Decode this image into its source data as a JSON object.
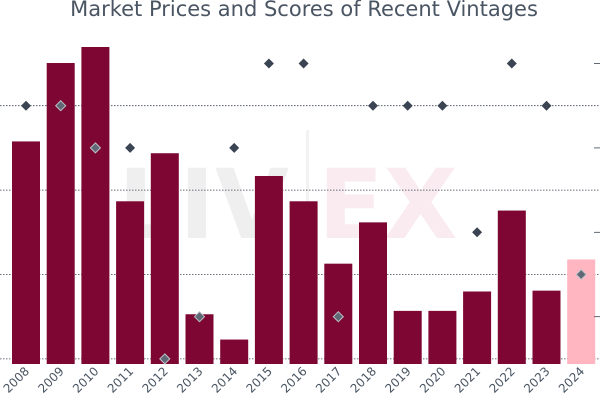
{
  "chart_data": {
    "type": "bar",
    "title": "Market Prices and Scores of Recent Vintages",
    "xlabel": "",
    "ylabel": "",
    "categories": [
      "2008",
      "2009",
      "2010",
      "2011",
      "2012",
      "2013",
      "2014",
      "2015",
      "2016",
      "2017",
      "2018",
      "2019",
      "2020",
      "2021",
      "2022",
      "2023",
      "2024"
    ],
    "series": [
      {
        "kind": "bar",
        "values": [
          264,
          357,
          376,
          193,
          250,
          59,
          29,
          223,
          193,
          119,
          168,
          63,
          63,
          86,
          182,
          87,
          124
        ],
        "colors": [
          "#7d0633",
          "#7d0633",
          "#7d0633",
          "#7d0633",
          "#7d0633",
          "#7d0633",
          "#7d0633",
          "#7d0633",
          "#7d0633",
          "#7d0633",
          "#7d0633",
          "#7d0633",
          "#7d0633",
          "#7d0633",
          "#7d0633",
          "#7d0633",
          "#ffb6c1"
        ]
      },
      {
        "kind": "scatter",
        "marker": "diamond",
        "color": "#3b4453",
        "values": [
          97,
          97,
          96,
          96,
          91,
          92,
          96,
          98,
          98,
          92,
          97,
          97,
          97,
          94,
          98,
          97,
          93
        ]
      }
    ],
    "ylim": [
      0,
      376
    ],
    "grid": true,
    "watermark": "LIV-EX"
  },
  "colors": {
    "bar": "#7d0633",
    "bar_highlight": "#ffb6c1",
    "marker": "#3b4453",
    "text": "#4a5563"
  }
}
